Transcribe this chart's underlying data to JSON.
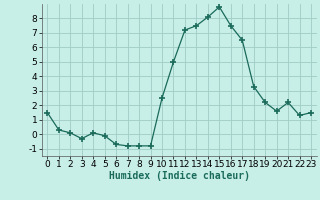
{
  "x": [
    0,
    1,
    2,
    3,
    4,
    5,
    6,
    7,
    8,
    9,
    10,
    11,
    12,
    13,
    14,
    15,
    16,
    17,
    18,
    19,
    20,
    21,
    22,
    23
  ],
  "y": [
    1.5,
    0.3,
    0.1,
    -0.3,
    0.1,
    -0.1,
    -0.7,
    -0.8,
    -0.8,
    -0.8,
    2.5,
    5.0,
    7.2,
    7.5,
    8.1,
    8.8,
    7.5,
    6.5,
    3.3,
    2.2,
    1.6,
    2.2,
    1.3,
    1.5
  ],
  "line_color": "#1a6b5a",
  "marker": "+",
  "marker_size": 4,
  "background_color": "#c8eee8",
  "grid_color": "#a0ccc6",
  "xlabel": "Humidex (Indice chaleur)",
  "xlim": [
    -0.5,
    23.5
  ],
  "ylim": [
    -1.5,
    9.0
  ],
  "yticks": [
    -1,
    0,
    1,
    2,
    3,
    4,
    5,
    6,
    7,
    8
  ],
  "xticks": [
    0,
    1,
    2,
    3,
    4,
    5,
    6,
    7,
    8,
    9,
    10,
    11,
    12,
    13,
    14,
    15,
    16,
    17,
    18,
    19,
    20,
    21,
    22,
    23
  ],
  "xlabel_fontsize": 7,
  "tick_fontsize": 6.5
}
